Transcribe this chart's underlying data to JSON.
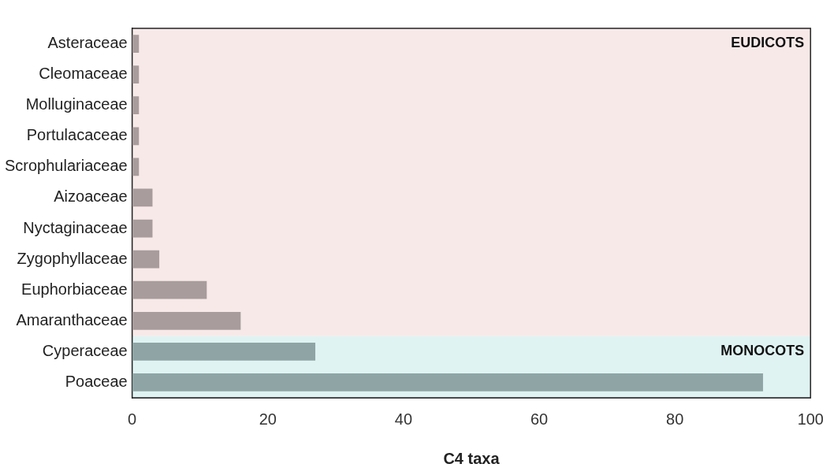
{
  "chart_data": {
    "type": "bar",
    "orientation": "horizontal",
    "xlabel": "C4 taxa",
    "categories": [
      "Asteraceae",
      "Cleomaceae",
      "Molluginaceae",
      "Portulacaceae",
      "Scrophulariaceae",
      "Aizoaceae",
      "Nyctaginaceae",
      "Zygophyllaceae",
      "Euphorbiaceae",
      "Amaranthaceae",
      "Cyperaceae",
      "Poaceae"
    ],
    "values": [
      1,
      1,
      1,
      1,
      1,
      3,
      3,
      4,
      11,
      16,
      27,
      93
    ],
    "colors": [
      "#a89c9c",
      "#a89c9c",
      "#a89c9c",
      "#a89c9c",
      "#a89c9c",
      "#a89c9c",
      "#a89c9c",
      "#a89c9c",
      "#a89c9c",
      "#a89c9c",
      "#8fa5a5",
      "#8fa5a5"
    ],
    "xlim": [
      0,
      100
    ],
    "xticks": [
      0,
      20,
      40,
      60,
      80,
      100
    ],
    "grid": false,
    "legend": false,
    "bands": [
      {
        "axis": "y",
        "from": "Asteraceae",
        "to": "Amaranthaceae",
        "label": "EUDICOTS",
        "color": "#f8e9e9"
      },
      {
        "axis": "y",
        "from": "Cyperaceae",
        "to": "Poaceae",
        "label": "MONOCOTS",
        "color": "#e0f3f3"
      }
    ]
  }
}
